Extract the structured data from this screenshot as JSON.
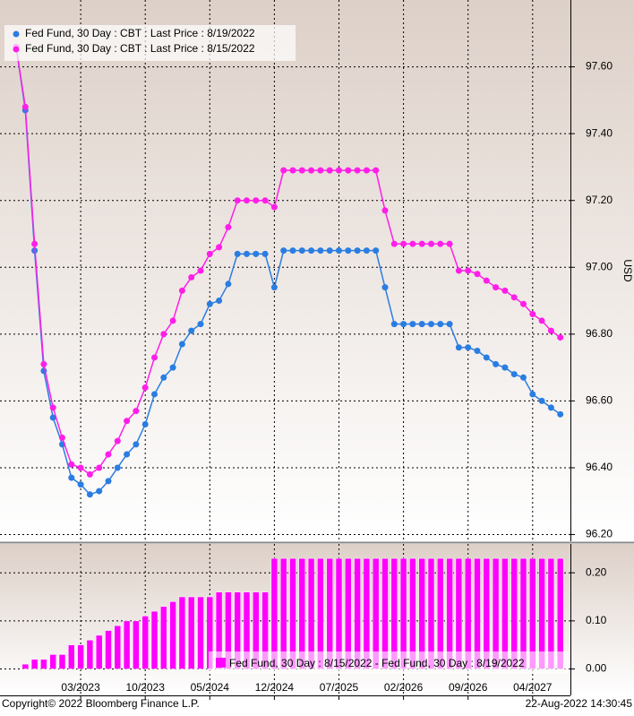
{
  "chart_data": [
    {
      "type": "line",
      "axis_label": "USD",
      "ylim": [
        96.18,
        97.8
      ],
      "yticks": [
        {
          "value": 96.2,
          "label": "96.20"
        },
        {
          "value": 96.4,
          "label": "96.40"
        },
        {
          "value": 96.6,
          "label": "96.60"
        },
        {
          "value": 96.8,
          "label": "96.80"
        },
        {
          "value": 97.0,
          "label": "97.00"
        },
        {
          "value": 97.2,
          "label": "97.20"
        },
        {
          "value": 97.4,
          "label": "97.40"
        },
        {
          "value": 97.6,
          "label": "97.60"
        }
      ],
      "grid": true,
      "legend": "top-left",
      "series": [
        {
          "name": "Fed Fund, 30 Day : CBT : Last Price : 8/19/2022",
          "color": "#2a7de1",
          "values": [
            97.66,
            97.47,
            97.05,
            96.69,
            96.55,
            96.47,
            96.37,
            96.35,
            96.32,
            96.33,
            96.36,
            96.4,
            96.44,
            96.47,
            96.53,
            96.62,
            96.67,
            96.7,
            96.77,
            96.81,
            96.83,
            96.89,
            96.9,
            96.95,
            97.04,
            97.04,
            97.04,
            97.04,
            96.94,
            97.05,
            97.05,
            97.05,
            97.05,
            97.05,
            97.05,
            97.05,
            97.05,
            97.05,
            97.05,
            97.05,
            96.94,
            96.83,
            96.83,
            96.83,
            96.83,
            96.83,
            96.83,
            96.83,
            96.76,
            96.76,
            96.75,
            96.73,
            96.71,
            96.7,
            96.68,
            96.67,
            96.62,
            96.6,
            96.58,
            96.56
          ]
        },
        {
          "name": "Fed Fund, 30 Day : CBT : Last Price : 8/15/2022",
          "color": "#ff1ee8",
          "values": [
            97.66,
            97.48,
            97.07,
            96.71,
            96.58,
            96.49,
            96.41,
            96.4,
            96.38,
            96.4,
            96.44,
            96.48,
            96.54,
            96.57,
            96.64,
            96.73,
            96.8,
            96.84,
            96.93,
            96.97,
            96.99,
            97.04,
            97.06,
            97.12,
            97.2,
            97.2,
            97.2,
            97.2,
            97.18,
            97.29,
            97.29,
            97.29,
            97.29,
            97.29,
            97.29,
            97.29,
            97.29,
            97.29,
            97.29,
            97.29,
            97.17,
            97.07,
            97.07,
            97.07,
            97.07,
            97.07,
            97.07,
            97.07,
            96.99,
            96.99,
            96.98,
            96.96,
            96.94,
            96.93,
            96.91,
            96.89,
            96.86,
            96.84,
            96.81,
            96.79
          ]
        }
      ]
    },
    {
      "type": "bar",
      "categories": [
        null,
        null,
        null,
        null,
        null,
        null,
        null,
        "03/2023",
        null,
        null,
        null,
        null,
        null,
        null,
        "10/2023",
        null,
        null,
        null,
        null,
        null,
        null,
        "05/2024",
        null,
        null,
        null,
        null,
        null,
        null,
        "12/2024",
        null,
        null,
        null,
        null,
        null,
        null,
        "07/2025",
        null,
        null,
        null,
        null,
        null,
        null,
        "02/2026",
        null,
        null,
        null,
        null,
        null,
        null,
        "09/2026",
        null,
        null,
        null,
        null,
        null,
        null,
        "04/2027",
        null,
        null,
        null
      ],
      "ylim": [
        -0.055,
        0.26
      ],
      "yticks": [
        {
          "value": 0,
          "label": "0.00"
        },
        {
          "value": 0.1,
          "label": "0.10"
        },
        {
          "value": 0.2,
          "label": "0.20"
        }
      ],
      "grid": true,
      "legend": "bottom-right",
      "series": [
        {
          "name": "Fed Fund, 30 Day : 8/15/2022 - Fed Fund, 30 Day : 8/19/2022",
          "color": "#ff00ff",
          "values": [
            0.0,
            0.01,
            0.02,
            0.02,
            0.03,
            0.03,
            0.05,
            0.05,
            0.06,
            0.07,
            0.08,
            0.09,
            0.1,
            0.1,
            0.11,
            0.12,
            0.13,
            0.14,
            0.15,
            0.15,
            0.15,
            0.15,
            0.16,
            0.16,
            0.16,
            0.16,
            0.16,
            0.16,
            0.23,
            0.23,
            0.23,
            0.23,
            0.23,
            0.23,
            0.23,
            0.23,
            0.23,
            0.23,
            0.23,
            0.23,
            0.23,
            0.23,
            0.23,
            0.23,
            0.23,
            0.23,
            0.23,
            0.23,
            0.23,
            0.23,
            0.23,
            0.23,
            0.23,
            0.23,
            0.23,
            0.23,
            0.23,
            0.23,
            0.23,
            0.23
          ]
        }
      ]
    }
  ],
  "footer": {
    "copyright": "Copyright© 2022 Bloomberg Finance L.P.",
    "timestamp": "22-Aug-2022 14:30:45"
  }
}
